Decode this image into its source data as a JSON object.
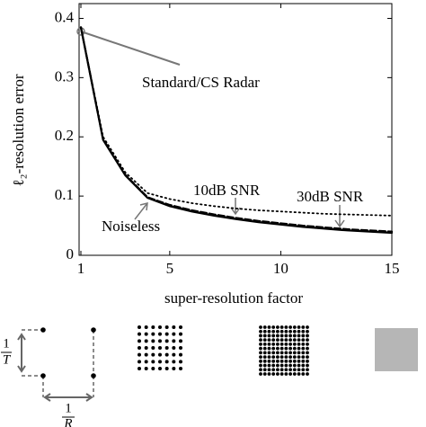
{
  "chart_data": {
    "type": "line",
    "x_label": "super-resolution factor",
    "y_label": "ℓ₂-resolution error",
    "x": [
      1,
      2,
      3,
      4,
      5,
      6,
      7,
      8,
      9,
      10,
      11,
      12,
      13,
      14,
      15
    ],
    "series": [
      {
        "name": "Noiseless",
        "color": "#000000",
        "style": "solid",
        "values": [
          0.385,
          0.195,
          0.135,
          0.097,
          0.083,
          0.074,
          0.067,
          0.061,
          0.056,
          0.052,
          0.048,
          0.045,
          0.042,
          0.04,
          0.038
        ]
      },
      {
        "name": "30dB SNR",
        "color": "#000000",
        "style": "dashed",
        "values": [
          0.385,
          0.196,
          0.136,
          0.098,
          0.085,
          0.076,
          0.069,
          0.063,
          0.058,
          0.054,
          0.05,
          0.047,
          0.044,
          0.042,
          0.04
        ]
      },
      {
        "name": "10dB SNR",
        "color": "#000000",
        "style": "dotted",
        "values": [
          0.385,
          0.2,
          0.14,
          0.105,
          0.095,
          0.088,
          0.083,
          0.079,
          0.076,
          0.074,
          0.072,
          0.07,
          0.069,
          0.068,
          0.067
        ]
      }
    ],
    "annotations": [
      "Standard/CS Radar"
    ],
    "xlim": [
      1,
      15
    ],
    "xticks": [
      1,
      5,
      10,
      15
    ],
    "ylim": [
      0,
      0.425
    ],
    "yticks": [
      0,
      0.1,
      0.2,
      0.3,
      0.4
    ]
  },
  "diagram": {
    "time_spacing": {
      "numerator": "1",
      "denominator": "T"
    },
    "range_spacing": {
      "numerator": "1",
      "denominator": "R"
    }
  }
}
